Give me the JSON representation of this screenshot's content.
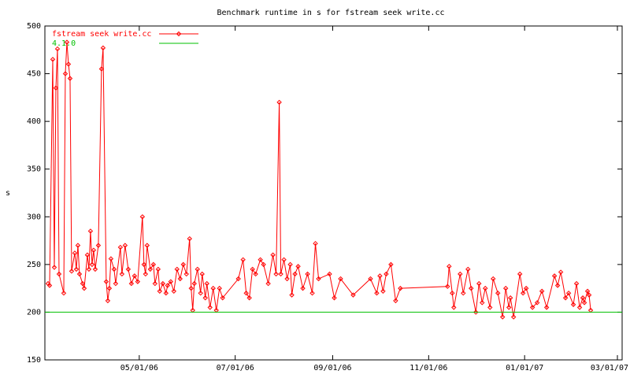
{
  "chart_data": {
    "type": "line",
    "title": "Benchmark runtime in s for fstream seek write.cc",
    "y_label": "s",
    "xlim": [
      "2006-03-02",
      "2007-03-04"
    ],
    "xticks": [
      {
        "value": "2006-05-01",
        "label": "05/01/06"
      },
      {
        "value": "2006-07-01",
        "label": "07/01/06"
      },
      {
        "value": "2006-09-01",
        "label": "09/01/06"
      },
      {
        "value": "2006-11-01",
        "label": "11/01/06"
      },
      {
        "value": "2007-01-01",
        "label": "01/01/07"
      },
      {
        "value": "2007-03-01",
        "label": "03/01/07"
      }
    ],
    "ylim": [
      150,
      500
    ],
    "yticks": [
      150,
      200,
      250,
      300,
      350,
      400,
      450,
      500
    ],
    "legend": "top-left",
    "series": [
      {
        "name": "fstream seek write.cc",
        "color": "#ff0000",
        "markers": true,
        "x": [
          "2006-03-04",
          "2006-03-05",
          "2006-03-07",
          "2006-03-08",
          "2006-03-09",
          "2006-03-10",
          "2006-03-11",
          "2006-03-14",
          "2006-03-15",
          "2006-03-16",
          "2006-03-17",
          "2006-03-18",
          "2006-03-19",
          "2006-03-21",
          "2006-03-22",
          "2006-03-23",
          "2006-03-24",
          "2006-03-26",
          "2006-03-27",
          "2006-03-29",
          "2006-03-30",
          "2006-03-31",
          "2006-04-01",
          "2006-04-02",
          "2006-04-03",
          "2006-04-05",
          "2006-04-07",
          "2006-04-08",
          "2006-04-10",
          "2006-04-11",
          "2006-04-12",
          "2006-04-13",
          "2006-04-15",
          "2006-04-16",
          "2006-04-19",
          "2006-04-20",
          "2006-04-22",
          "2006-04-24",
          "2006-04-26",
          "2006-04-28",
          "2006-04-30",
          "2006-05-03",
          "2006-05-04",
          "2006-05-05",
          "2006-05-06",
          "2006-05-08",
          "2006-05-10",
          "2006-05-11",
          "2006-05-13",
          "2006-05-14",
          "2006-05-16",
          "2006-05-18",
          "2006-05-19",
          "2006-05-21",
          "2006-05-23",
          "2006-05-25",
          "2006-05-27",
          "2006-05-29",
          "2006-05-31",
          "2006-06-02",
          "2006-06-03",
          "2006-06-04",
          "2006-06-05",
          "2006-06-07",
          "2006-06-09",
          "2006-06-10",
          "2006-06-12",
          "2006-06-13",
          "2006-06-15",
          "2006-06-17",
          "2006-06-19",
          "2006-06-21",
          "2006-06-23",
          "2006-07-03",
          "2006-07-06",
          "2006-07-08",
          "2006-07-10",
          "2006-07-12",
          "2006-07-14",
          "2006-07-17",
          "2006-07-19",
          "2006-07-22",
          "2006-07-25",
          "2006-07-27",
          "2006-07-29",
          "2006-07-30",
          "2006-08-01",
          "2006-08-03",
          "2006-08-05",
          "2006-08-06",
          "2006-08-08",
          "2006-08-10",
          "2006-08-13",
          "2006-08-16",
          "2006-08-19",
          "2006-08-21",
          "2006-08-23",
          "2006-08-30",
          "2006-09-02",
          "2006-09-06",
          "2006-09-14",
          "2006-09-25",
          "2006-09-29",
          "2006-10-01",
          "2006-10-03",
          "2006-10-05",
          "2006-10-08",
          "2006-10-11",
          "2006-10-14",
          "2006-11-13",
          "2006-11-14",
          "2006-11-16",
          "2006-11-17",
          "2006-11-21",
          "2006-11-23",
          "2006-11-26",
          "2006-11-28",
          "2006-12-01",
          "2006-12-03",
          "2006-12-05",
          "2006-12-07",
          "2006-12-10",
          "2006-12-12",
          "2006-12-15",
          "2006-12-18",
          "2006-12-20",
          "2006-12-22",
          "2006-12-23",
          "2006-12-25",
          "2006-12-29",
          "2006-12-31",
          "2007-01-02",
          "2007-01-06",
          "2007-01-09",
          "2007-01-12",
          "2007-01-15",
          "2007-01-20",
          "2007-01-22",
          "2007-01-24",
          "2007-01-27",
          "2007-01-29",
          "2007-02-01",
          "2007-02-03",
          "2007-02-05",
          "2007-02-07",
          "2007-02-08",
          "2007-02-10",
          "2007-02-11",
          "2007-02-12"
        ],
        "values": [
          230,
          228,
          465,
          247,
          435,
          476,
          240,
          220,
          450,
          483,
          460,
          445,
          243,
          262,
          245,
          270,
          240,
          230,
          225,
          260,
          245,
          285,
          250,
          265,
          245,
          270,
          455,
          477,
          232,
          212,
          225,
          256,
          245,
          230,
          268,
          240,
          270,
          245,
          230,
          238,
          232,
          300,
          250,
          240,
          270,
          245,
          250,
          230,
          245,
          222,
          230,
          220,
          228,
          232,
          222,
          245,
          235,
          250,
          240,
          277,
          225,
          202,
          230,
          245,
          220,
          240,
          215,
          230,
          205,
          225,
          202,
          225,
          215,
          235,
          255,
          220,
          215,
          245,
          240,
          255,
          250,
          230,
          260,
          240,
          420,
          240,
          255,
          235,
          250,
          218,
          240,
          248,
          225,
          240,
          220,
          272,
          235,
          240,
          215,
          235,
          218,
          235,
          220,
          238,
          222,
          240,
          250,
          212,
          225,
          227,
          248,
          220,
          205,
          240,
          220,
          245,
          225,
          200,
          230,
          210,
          225,
          205,
          235,
          220,
          195,
          225,
          205,
          215,
          195,
          240,
          220,
          225,
          205,
          210,
          222,
          205,
          238,
          228,
          242,
          215,
          220,
          208,
          230,
          205,
          215,
          210,
          222,
          218,
          202
        ]
      },
      {
        "name": "4.1.0",
        "color": "#00c000",
        "markers": false,
        "x": [
          "2006-03-02",
          "2007-03-04"
        ],
        "values": [
          200,
          200
        ]
      }
    ]
  }
}
